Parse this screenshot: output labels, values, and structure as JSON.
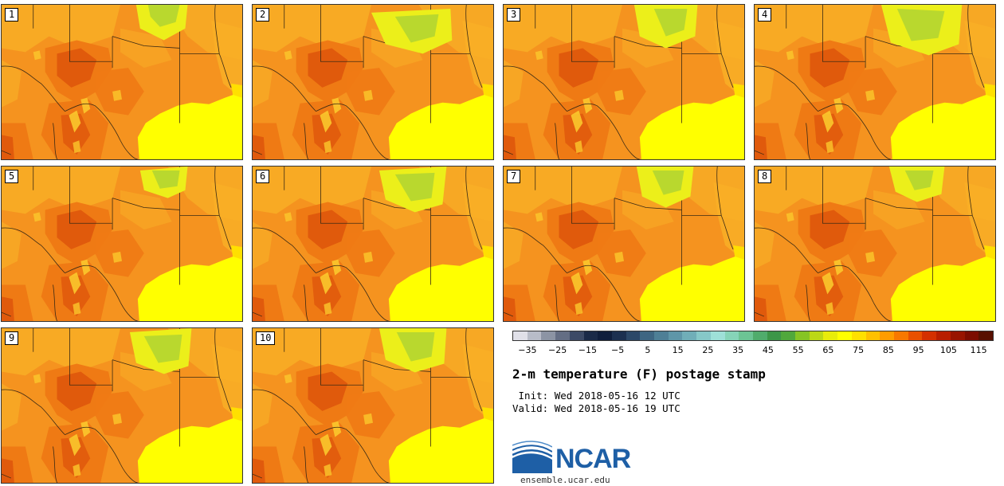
{
  "title": "2-m temperature (F) postage stamp",
  "init_label": " Init:",
  "init_value": "Wed 2018-05-16 12 UTC",
  "valid_label": "Valid:",
  "valid_value": "Wed 2018-05-16 19 UTC",
  "logo": {
    "name": "NCAR",
    "url": "ensemble.ucar.edu"
  },
  "members": [
    "1",
    "2",
    "3",
    "4",
    "5",
    "6",
    "7",
    "8",
    "9",
    "10"
  ],
  "colorbar": {
    "tick_labels": [
      "-35",
      "-25",
      "-15",
      "-5",
      "5",
      "15",
      "25",
      "35",
      "45",
      "55",
      "65",
      "75",
      "85",
      "95",
      "105",
      "115"
    ],
    "min": -40,
    "max": 120,
    "colors": [
      "#e0e0e8",
      "#b8bcc8",
      "#8c94a4",
      "#646e84",
      "#3c4a66",
      "#1a2a48",
      "#0f1e3c",
      "#1c3050",
      "#2c4868",
      "#3e6682",
      "#4e7f96",
      "#5e96a8",
      "#70aeb8",
      "#86c8c8",
      "#9ee0d8",
      "#86d4b8",
      "#6cc494",
      "#50ac6c",
      "#3c9648",
      "#50a83c",
      "#86c424",
      "#bcd816",
      "#e8ec0a",
      "#ffff00",
      "#ffe000",
      "#ffc000",
      "#ff9c00",
      "#f87800",
      "#e85000",
      "#d43000",
      "#b81e00",
      "#981400",
      "#7c0c00",
      "#581000"
    ]
  },
  "map_colors": {
    "base": "#f5931f",
    "warm": "#ef7a14",
    "hot": "#e05a0c",
    "mild": "#f8ae26",
    "pale": "#fbc82c",
    "gulf": "#ffff00",
    "cool_yellow": "#ecef1a",
    "cool_green": "#b9d82e",
    "boundary": "#3a2a14"
  }
}
